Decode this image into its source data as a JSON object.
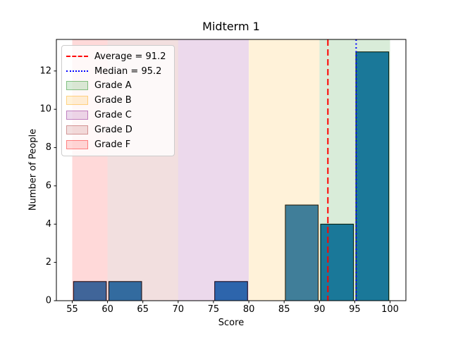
{
  "chart_data": {
    "type": "bar",
    "subtype": "histogram",
    "title": "Midterm 1",
    "xlabel": "Score",
    "ylabel": "Number of People",
    "xlim": [
      52.75,
      102.25
    ],
    "ylim": [
      0,
      13.65
    ],
    "xticks": [
      55,
      60,
      65,
      70,
      75,
      80,
      85,
      90,
      95,
      100
    ],
    "yticks": [
      0,
      2,
      4,
      6,
      8,
      10,
      12
    ],
    "grid": false,
    "bar_color": "#1f77b4",
    "bar_edge_color": "#000000",
    "bar_rwidth": 0.93,
    "bins": [
      {
        "range": [
          55,
          60
        ],
        "count": 1
      },
      {
        "range": [
          60,
          65
        ],
        "count": 1
      },
      {
        "range": [
          75,
          80
        ],
        "count": 1
      },
      {
        "range": [
          85,
          90
        ],
        "count": 5
      },
      {
        "range": [
          90,
          95
        ],
        "count": 4
      },
      {
        "range": [
          95,
          100
        ],
        "count": 13
      }
    ],
    "bands": [
      {
        "label": "Grade A",
        "range": [
          90,
          100
        ],
        "color": "#008000",
        "alpha": 0.15
      },
      {
        "label": "Grade B",
        "range": [
          80,
          90
        ],
        "color": "#ffa500",
        "alpha": 0.15
      },
      {
        "label": "Grade C",
        "range": [
          70,
          80
        ],
        "color": "#800080",
        "alpha": 0.15
      },
      {
        "label": "Grade D",
        "range": [
          60,
          70
        ],
        "color": "#a52a2a",
        "alpha": 0.15
      },
      {
        "label": "Grade F",
        "range": [
          55,
          60
        ],
        "color": "#ff0000",
        "alpha": 0.15
      }
    ],
    "lines": [
      {
        "label": "Average = 91.2",
        "value": 91.2,
        "color": "#ff0000",
        "style": "dashed"
      },
      {
        "label": "Median = 95.2",
        "value": 95.2,
        "color": "#0000ff",
        "style": "dotted"
      }
    ],
    "legend": {
      "position": "upper left",
      "entries": [
        "Average = 91.2",
        "Median = 95.2",
        "Grade A",
        "Grade B",
        "Grade C",
        "Grade D",
        "Grade F"
      ]
    }
  }
}
